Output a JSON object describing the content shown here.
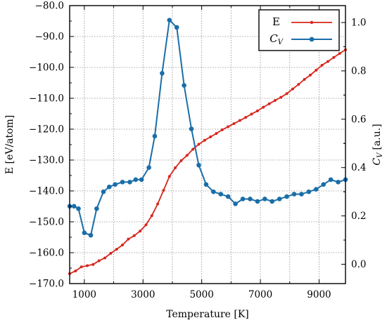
{
  "chart_data": {
    "type": "line",
    "x_axis": {
      "label": "Temperature [K]",
      "range": [
        500,
        9900
      ],
      "ticks": [
        1000,
        3000,
        5000,
        7000,
        9000
      ],
      "tick_labels": [
        "1000",
        "3000",
        "5000",
        "7000",
        "9000"
      ]
    },
    "y_left": {
      "label": "E [eV/atom]",
      "range": [
        -170,
        -80
      ],
      "ticks": [
        -170,
        -160,
        -150,
        -140,
        -130,
        -120,
        -110,
        -100,
        -90,
        -80
      ],
      "tick_labels": [
        "−170.0",
        "−160.0",
        "−150.0",
        "−140.0",
        "−130.0",
        "−120.0",
        "−110.0",
        "−100.0",
        "−90.0",
        "−80.0"
      ]
    },
    "y_right": {
      "label_main": "C",
      "label_sub": "V",
      "label_unit": "[a.u.]",
      "range": [
        -0.08,
        1.07
      ],
      "ticks": [
        0.0,
        0.2,
        0.4,
        0.6,
        0.8,
        1.0
      ],
      "tick_labels": [
        "0.0",
        "0.2",
        "0.4",
        "0.6",
        "0.8",
        "1.0"
      ]
    },
    "grid": true,
    "legend_position": "top-right",
    "series": [
      {
        "name": "E",
        "axis": "left",
        "color": "#d7261e",
        "marker_size": "small",
        "points": [
          [
            500,
            -166.8
          ],
          [
            700,
            -165.9
          ],
          [
            900,
            -164.6
          ],
          [
            1100,
            -164.2
          ],
          [
            1300,
            -163.8
          ],
          [
            1500,
            -162.6
          ],
          [
            1700,
            -161.7
          ],
          [
            1900,
            -160.2
          ],
          [
            2100,
            -158.9
          ],
          [
            2300,
            -157.5
          ],
          [
            2500,
            -155.6
          ],
          [
            2700,
            -154.5
          ],
          [
            2900,
            -153.0
          ],
          [
            3100,
            -151.0
          ],
          [
            3300,
            -148.0
          ],
          [
            3500,
            -144.2
          ],
          [
            3700,
            -139.8
          ],
          [
            3900,
            -135.3
          ],
          [
            4100,
            -132.5
          ],
          [
            4300,
            -130.2
          ],
          [
            4500,
            -128.5
          ],
          [
            4700,
            -126.5
          ],
          [
            4900,
            -124.9
          ],
          [
            5100,
            -123.6
          ],
          [
            5300,
            -122.5
          ],
          [
            5500,
            -121.4
          ],
          [
            5700,
            -120.2
          ],
          [
            5900,
            -119.2
          ],
          [
            6100,
            -118.2
          ],
          [
            6300,
            -117.2
          ],
          [
            6500,
            -116.2
          ],
          [
            6700,
            -115.1
          ],
          [
            6900,
            -114.1
          ],
          [
            7100,
            -112.9
          ],
          [
            7300,
            -111.8
          ],
          [
            7500,
            -110.7
          ],
          [
            7700,
            -109.7
          ],
          [
            7900,
            -108.5
          ],
          [
            8100,
            -107.0
          ],
          [
            8300,
            -105.5
          ],
          [
            8500,
            -103.9
          ],
          [
            8700,
            -102.5
          ],
          [
            8900,
            -100.9
          ],
          [
            9100,
            -99.3
          ],
          [
            9300,
            -98.1
          ],
          [
            9500,
            -96.8
          ],
          [
            9700,
            -95.5
          ],
          [
            9900,
            -94.3
          ]
        ]
      },
      {
        "name": "C_V",
        "axis": "right",
        "color": "#1a6ea8",
        "marker_size": "large",
        "points": [
          [
            500,
            0.24
          ],
          [
            650,
            0.24
          ],
          [
            800,
            0.23
          ],
          [
            1000,
            0.13
          ],
          [
            1220,
            0.12
          ],
          [
            1420,
            0.23
          ],
          [
            1650,
            0.3
          ],
          [
            1850,
            0.32
          ],
          [
            2050,
            0.33
          ],
          [
            2300,
            0.34
          ],
          [
            2550,
            0.34
          ],
          [
            2750,
            0.35
          ],
          [
            2950,
            0.35
          ],
          [
            3200,
            0.4
          ],
          [
            3400,
            0.53
          ],
          [
            3650,
            0.79
          ],
          [
            3900,
            1.01
          ],
          [
            4150,
            0.98
          ],
          [
            4400,
            0.74
          ],
          [
            4650,
            0.56
          ],
          [
            4900,
            0.41
          ],
          [
            5150,
            0.33
          ],
          [
            5400,
            0.3
          ],
          [
            5650,
            0.29
          ],
          [
            5900,
            0.28
          ],
          [
            6150,
            0.25
          ],
          [
            6400,
            0.27
          ],
          [
            6650,
            0.27
          ],
          [
            6900,
            0.26
          ],
          [
            7150,
            0.27
          ],
          [
            7400,
            0.26
          ],
          [
            7650,
            0.27
          ],
          [
            7900,
            0.28
          ],
          [
            8150,
            0.29
          ],
          [
            8400,
            0.29
          ],
          [
            8650,
            0.3
          ],
          [
            8900,
            0.31
          ],
          [
            9150,
            0.33
          ],
          [
            9400,
            0.35
          ],
          [
            9650,
            0.34
          ],
          [
            9900,
            0.35
          ]
        ]
      }
    ]
  }
}
